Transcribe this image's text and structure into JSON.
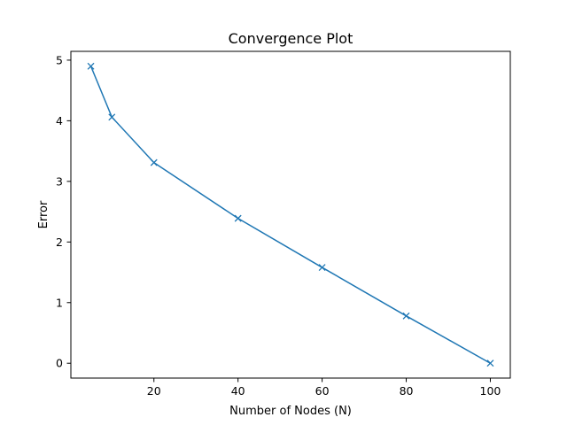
{
  "chart_data": {
    "type": "line",
    "title": "Convergence Plot",
    "xlabel": "Number of Nodes (N)",
    "ylabel": "Error",
    "xlim": [
      0.25,
      104.75
    ],
    "ylim": [
      -0.245,
      5.145
    ],
    "xticks": [
      20,
      40,
      60,
      80,
      100
    ],
    "xtick_labels": [
      "20",
      "40",
      "60",
      "80",
      "100"
    ],
    "yticks": [
      0,
      1,
      2,
      3,
      4,
      5
    ],
    "ytick_labels": [
      "0",
      "1",
      "2",
      "3",
      "4",
      "5"
    ],
    "grid": false,
    "legend": "none",
    "marker": "x",
    "series": [
      {
        "color": "#1f77b4",
        "x": [
          5,
          10,
          20,
          40,
          60,
          80,
          100
        ],
        "y": [
          4.9,
          4.06,
          3.31,
          2.39,
          1.58,
          0.78,
          0.0
        ]
      }
    ]
  }
}
